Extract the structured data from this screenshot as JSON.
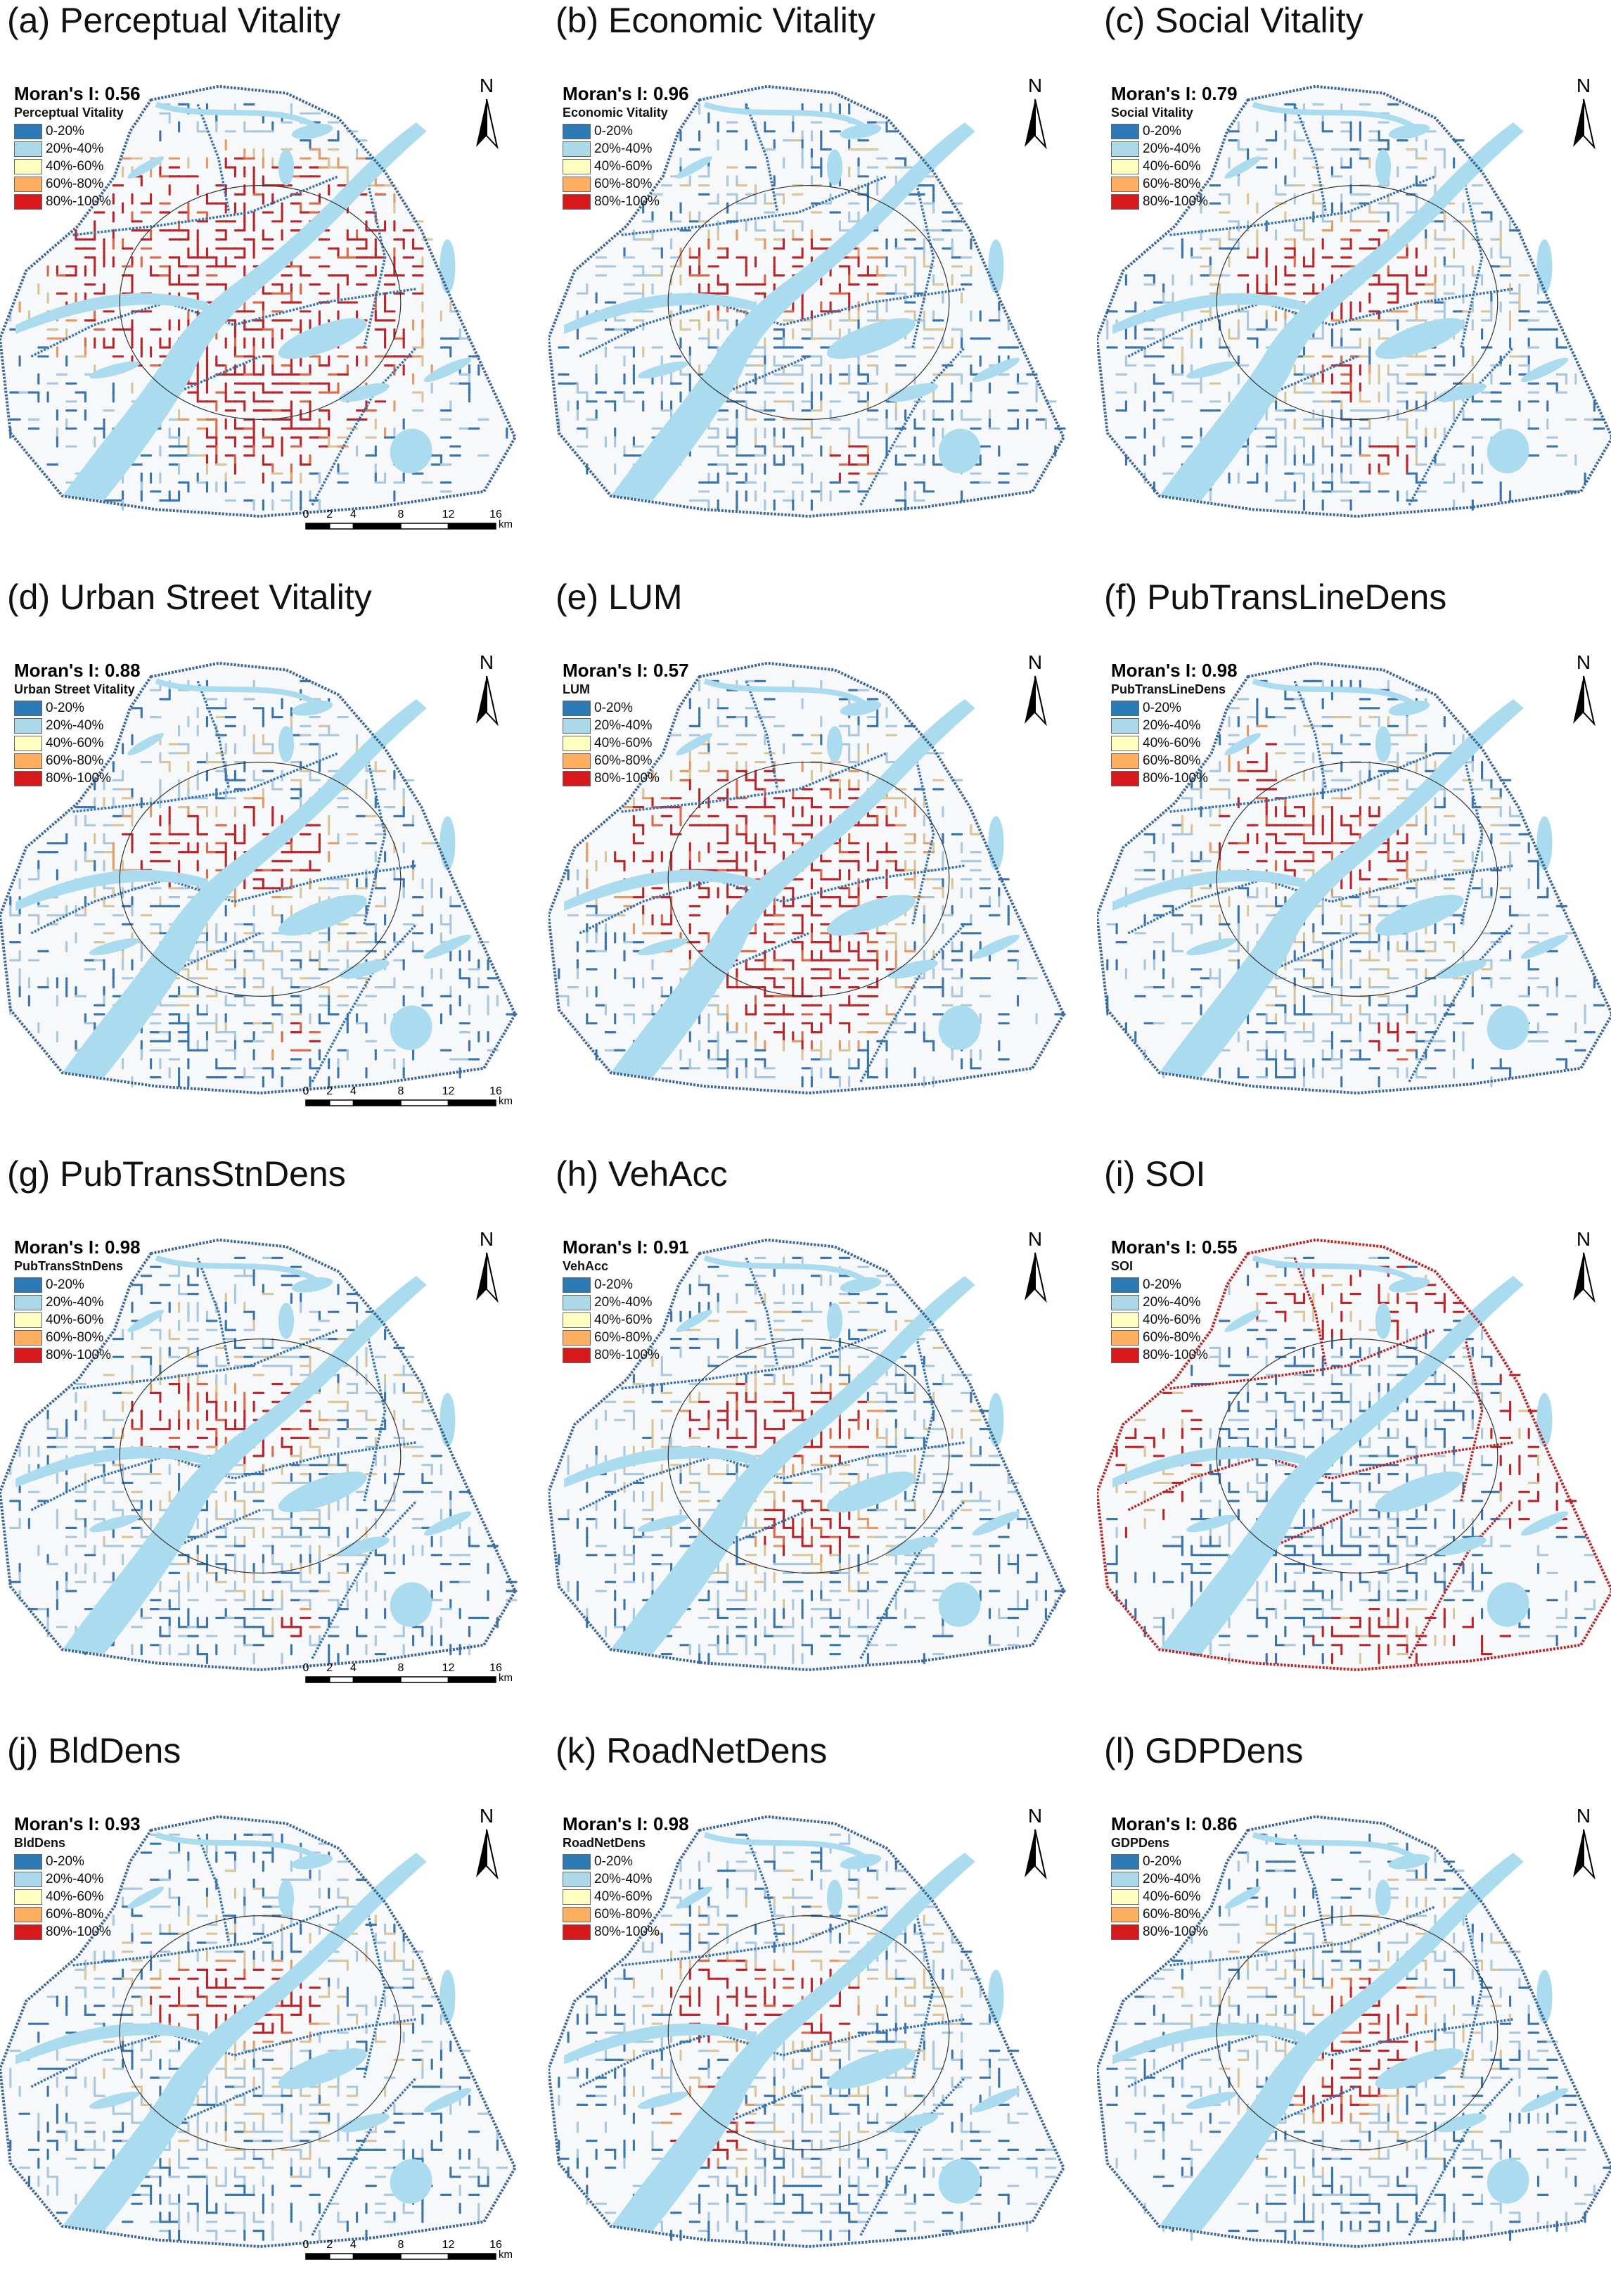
{
  "legend_classes": [
    {
      "label": "0-20%",
      "color": "#2c7bb6"
    },
    {
      "label": "20%-40%",
      "color": "#abd9e9"
    },
    {
      "label": "40%-60%",
      "color": "#ffffbf"
    },
    {
      "label": "60%-80%",
      "color": "#fdae61"
    },
    {
      "label": "80%-100%",
      "color": "#d7191c"
    }
  ],
  "colors": {
    "water": "#aadbef",
    "outline": "#3d6794",
    "road_dark_red": "#b8252a",
    "road_tan": "#d9c59a",
    "road_light_blue": "#a9c7de",
    "road_blue": "#3a74ad"
  },
  "north_label": "N",
  "scale_bar": {
    "ticks": [
      "0",
      "2",
      "4",
      "8",
      "12",
      "16"
    ],
    "unit": "km"
  },
  "panels": [
    {
      "id": "a",
      "title": "(a) Perceptual Vitality",
      "moran_label": "Moran's I: 0.56",
      "legend_title": "Perceptual Vitality",
      "hotspots": [
        [
          0.45,
          0.42,
          0.45,
          0.3
        ],
        [
          0.3,
          0.5,
          0.2,
          0.2
        ],
        [
          0.55,
          0.6,
          0.3,
          0.25
        ],
        [
          0.5,
          0.8,
          0.15,
          0.1
        ]
      ],
      "red_share": 0.45,
      "scale": true
    },
    {
      "id": "b",
      "title": "(b) Economic Vitality",
      "moran_label": "Moran's I: 0.96",
      "legend_title": "Economic Vitality",
      "hotspots": [
        [
          0.35,
          0.43,
          0.12,
          0.1
        ],
        [
          0.5,
          0.44,
          0.15,
          0.11
        ],
        [
          0.58,
          0.85,
          0.05,
          0.05
        ]
      ],
      "red_share": 0.2,
      "scale": false
    },
    {
      "id": "c",
      "title": "(c) Social Vitality",
      "moran_label": "Moran's I: 0.79",
      "legend_title": "Social Vitality",
      "hotspots": [
        [
          0.36,
          0.44,
          0.12,
          0.09
        ],
        [
          0.5,
          0.43,
          0.17,
          0.12
        ],
        [
          0.47,
          0.66,
          0.06,
          0.06
        ],
        [
          0.56,
          0.84,
          0.06,
          0.05
        ]
      ],
      "red_share": 0.25,
      "scale": false
    },
    {
      "id": "d",
      "title": "(d) Urban Street Vitality",
      "moran_label": "Moran's I: 0.88",
      "legend_title": "Urban Street Vitality",
      "hotspots": [
        [
          0.33,
          0.42,
          0.13,
          0.1
        ],
        [
          0.5,
          0.43,
          0.15,
          0.12
        ],
        [
          0.56,
          0.85,
          0.05,
          0.05
        ]
      ],
      "red_share": 0.22,
      "scale": true
    },
    {
      "id": "e",
      "title": "(e) LUM",
      "moran_label": "Moran's I: 0.57",
      "legend_title": "LUM",
      "hotspots": [
        [
          0.4,
          0.45,
          0.35,
          0.25
        ],
        [
          0.5,
          0.7,
          0.2,
          0.2
        ],
        [
          0.3,
          0.55,
          0.15,
          0.15
        ]
      ],
      "red_share": 0.35,
      "scale": false
    },
    {
      "id": "f",
      "title": "(f) PubTransLineDens",
      "moran_label": "Moran's I: 0.98",
      "legend_title": "PubTransLineDens",
      "hotspots": [
        [
          0.33,
          0.4,
          0.13,
          0.12
        ],
        [
          0.5,
          0.42,
          0.13,
          0.12
        ],
        [
          0.56,
          0.86,
          0.05,
          0.06
        ],
        [
          0.3,
          0.25,
          0.05,
          0.1
        ]
      ],
      "red_share": 0.22,
      "scale": false
    },
    {
      "id": "g",
      "title": "(g) PubTransStnDens",
      "moran_label": "Moran's I: 0.98",
      "legend_title": "PubTransStnDens",
      "hotspots": [
        [
          0.34,
          0.41,
          0.12,
          0.1
        ],
        [
          0.5,
          0.42,
          0.13,
          0.11
        ],
        [
          0.56,
          0.87,
          0.04,
          0.04
        ]
      ],
      "red_share": 0.22,
      "scale": true
    },
    {
      "id": "h",
      "title": "(h) VehAcc",
      "moran_label": "Moran's I: 0.91",
      "legend_title": "VehAcc",
      "hotspots": [
        [
          0.36,
          0.42,
          0.12,
          0.1
        ],
        [
          0.5,
          0.43,
          0.15,
          0.11
        ],
        [
          0.5,
          0.65,
          0.12,
          0.08
        ]
      ],
      "red_share": 0.22,
      "scale": false
    },
    {
      "id": "i",
      "title": "(i) SOI",
      "moran_label": "Moran's I: 0.55",
      "legend_title": "SOI",
      "hotspots": [
        [
          0.1,
          0.5,
          0.1,
          0.2
        ],
        [
          0.85,
          0.45,
          0.1,
          0.25
        ],
        [
          0.5,
          0.15,
          0.25,
          0.08
        ],
        [
          0.6,
          0.9,
          0.2,
          0.08
        ]
      ],
      "red_share": 0.3,
      "scale": false
    },
    {
      "id": "j",
      "title": "(j) BldDens",
      "moran_label": "Moran's I: 0.93",
      "legend_title": "BldDens",
      "hotspots": [
        [
          0.37,
          0.42,
          0.1,
          0.1
        ],
        [
          0.5,
          0.43,
          0.14,
          0.11
        ]
      ],
      "red_share": 0.2,
      "scale": true
    },
    {
      "id": "k",
      "title": "(k) RoadNetDens",
      "moran_label": "Moran's I: 0.98",
      "legend_title": "RoadNetDens",
      "hotspots": [
        [
          0.33,
          0.42,
          0.12,
          0.11
        ],
        [
          0.5,
          0.43,
          0.12,
          0.1
        ],
        [
          0.3,
          0.7,
          0.1,
          0.1
        ]
      ],
      "red_share": 0.22,
      "scale": false
    },
    {
      "id": "l",
      "title": "(l) GDPDens",
      "moran_label": "Moran's I: 0.86",
      "legend_title": "GDPDens",
      "hotspots": [
        [
          0.52,
          0.5,
          0.12,
          0.16
        ],
        [
          0.45,
          0.62,
          0.1,
          0.08
        ]
      ],
      "red_share": 0.22,
      "scale": false
    }
  ]
}
